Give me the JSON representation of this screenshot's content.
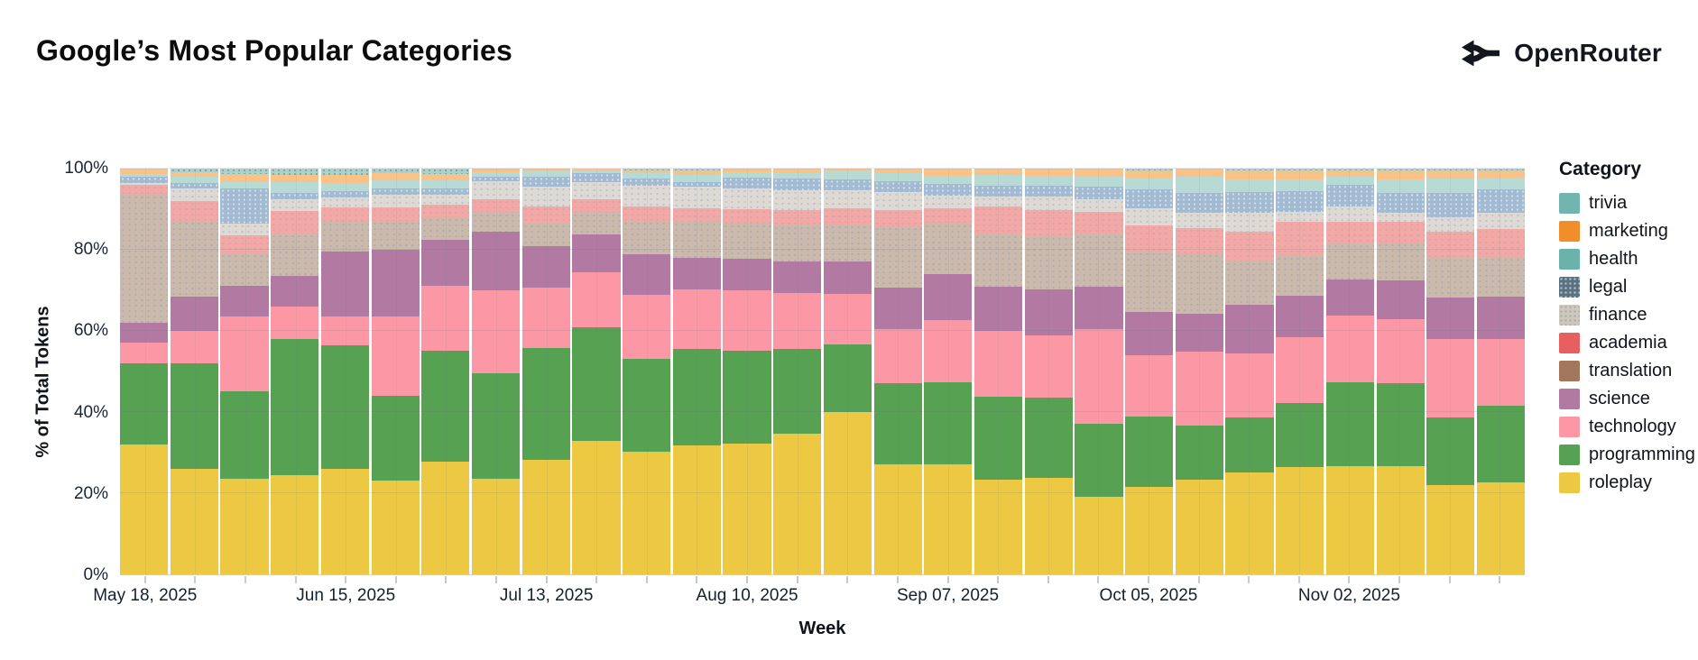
{
  "header": {
    "title": "Google’s Most Popular Categories",
    "brand": "OpenRouter"
  },
  "chart_data": {
    "type": "bar",
    "stacked": true,
    "title": "Google’s Most Popular Categories",
    "xlabel": "Week",
    "ylabel": "% of Total Tokens",
    "ylim": [
      0,
      100
    ],
    "grid": true,
    "legend_position": "right",
    "y_ticks": [
      "0%",
      "20%",
      "40%",
      "60%",
      "80%",
      "100%"
    ],
    "x": [
      "May 18, 2025",
      "May 25, 2025",
      "Jun 01, 2025",
      "Jun 08, 2025",
      "Jun 15, 2025",
      "Jun 22, 2025",
      "Jun 29, 2025",
      "Jul 06, 2025",
      "Jul 13, 2025",
      "Jul 20, 2025",
      "Jul 27, 2025",
      "Aug 03, 2025",
      "Aug 10, 2025",
      "Aug 17, 2025",
      "Aug 24, 2025",
      "Aug 31, 2025",
      "Sep 07, 2025",
      "Sep 14, 2025",
      "Sep 21, 2025",
      "Sep 28, 2025",
      "Oct 05, 2025",
      "Oct 12, 2025",
      "Oct 19, 2025",
      "Oct 26, 2025",
      "Nov 02, 2025",
      "Nov 09, 2025",
      "Nov 16, 2025",
      "Nov 23, 2025"
    ],
    "x_tick_labels": [
      {
        "index": 0,
        "label": "May 18, 2025"
      },
      {
        "index": 4,
        "label": "Jun 15, 2025"
      },
      {
        "index": 8,
        "label": "Jul 13, 2025"
      },
      {
        "index": 12,
        "label": "Aug 10, 2025"
      },
      {
        "index": 16,
        "label": "Sep 07, 2025"
      },
      {
        "index": 20,
        "label": "Oct 05, 2025"
      },
      {
        "index": 24,
        "label": "Nov 02, 2025"
      }
    ],
    "series": [
      {
        "name": "roleplay",
        "color": "#ecc843",
        "texture": null,
        "values": [
          32,
          26,
          23.5,
          24.5,
          26,
          23,
          27.8,
          23.5,
          28.3,
          32.8,
          30.2,
          31.7,
          32.1,
          34.7,
          40,
          27.2,
          27.2,
          23.4,
          23.8,
          19.2,
          21.5,
          23.4,
          25.1,
          26.4,
          26.6,
          26.6,
          22,
          22.6
        ]
      },
      {
        "name": "programming",
        "color": "#56a152",
        "texture": null,
        "values": [
          20,
          26,
          21.5,
          33.5,
          30.5,
          21,
          27.2,
          26,
          27.4,
          28,
          22.8,
          23.9,
          23.1,
          20.8,
          16.6,
          20,
          20.1,
          20.4,
          19.8,
          17.8,
          17.4,
          13.2,
          13.5,
          15.9,
          20.8,
          20.4,
          16.6,
          18.9
        ]
      },
      {
        "name": "technology",
        "color": "#fc98a6",
        "texture": null,
        "values": [
          5,
          8,
          18.5,
          8,
          7,
          19.5,
          16,
          20.5,
          14.9,
          13.7,
          15.9,
          14.6,
          14.8,
          13.9,
          12.4,
          13.2,
          15.3,
          16.2,
          15.3,
          23.5,
          15.1,
          18.3,
          15.9,
          16.2,
          16.4,
          15.8,
          19.4,
          16.6
        ]
      },
      {
        "name": "science",
        "color": "#b27aa2",
        "texture": null,
        "values": [
          5,
          8.5,
          7.5,
          7.5,
          16,
          16.5,
          11.5,
          14.5,
          10.2,
          9.3,
          10,
          7.7,
          7.7,
          7.7,
          8,
          10.3,
          11.5,
          10.9,
          11.4,
          10.4,
          10.7,
          9.4,
          11.9,
          10.2,
          8.8,
          9.7,
          10.3,
          10.4
        ]
      },
      {
        "name": "translation",
        "color": "#cbb9ab",
        "texture": "dots-blue",
        "values": [
          31.5,
          18.5,
          8,
          10.5,
          7.5,
          7,
          5.5,
          4.5,
          5.6,
          5.2,
          8.1,
          8.9,
          8.7,
          8.9,
          9.2,
          15.1,
          12.3,
          12.9,
          13.1,
          12.9,
          14.9,
          14.9,
          10.6,
          9.8,
          8.9,
          9.2,
          9.8,
          9.8
        ]
      },
      {
        "name": "academia",
        "color": "#f1a9a8",
        "texture": "dots-pink",
        "values": [
          2.5,
          5,
          4.5,
          5.5,
          3.5,
          3.5,
          3,
          3.4,
          4.3,
          3.5,
          3.6,
          3.4,
          3.6,
          3.7,
          4,
          3.9,
          3.8,
          6.8,
          6.3,
          5.6,
          6.4,
          6.2,
          7.4,
          8.3,
          5.4,
          5.1,
          6.4,
          6.8
        ]
      },
      {
        "name": "finance",
        "color": "#dfd9d4",
        "texture": "dots-blue",
        "values": [
          0.5,
          3,
          3,
          3,
          2.5,
          3,
          2.5,
          4.5,
          4.8,
          4.1,
          5.1,
          5.3,
          5.1,
          5,
          4.5,
          4.6,
          3.2,
          2.6,
          3.3,
          3.1,
          4.3,
          3.7,
          4.6,
          2.6,
          3.7,
          2.4,
          3.4,
          4.1
        ]
      },
      {
        "name": "legal",
        "color": "#a3bad3",
        "texture": "dots-light",
        "values": [
          1.5,
          1.5,
          8.5,
          1.5,
          1.5,
          1.5,
          1.5,
          1.2,
          2.6,
          2.3,
          1.8,
          1.1,
          2.6,
          2.8,
          2.7,
          2.5,
          2.8,
          2.6,
          2.7,
          3,
          4.6,
          4.9,
          5.2,
          5.1,
          5.4,
          4.8,
          6.1,
          5.7
        ]
      },
      {
        "name": "health",
        "color": "#b7dad5",
        "texture": null,
        "values": [
          0.7,
          1.5,
          1.8,
          2.7,
          2,
          2,
          2,
          1,
          1.2,
          0.7,
          1.3,
          1.8,
          1.3,
          1.4,
          1.9,
          2.1,
          2.1,
          2.7,
          2.6,
          2.6,
          2.8,
          4.1,
          3.2,
          2.8,
          2.1,
          3.4,
          3.5,
          2.8
        ]
      },
      {
        "name": "marketing",
        "color": "#f9c288",
        "texture": null,
        "values": [
          1,
          1.2,
          1.9,
          1.8,
          2,
          1.8,
          1.7,
          0.6,
          0.5,
          0.3,
          0.8,
          1.1,
          0.7,
          0.8,
          0.5,
          0.8,
          1.4,
          1.2,
          1.4,
          1.6,
          1.9,
          1.6,
          2.2,
          2.3,
          1.5,
          2.2,
          2.1,
          1.8
        ]
      },
      {
        "name": "trivia",
        "color": "#abd1cc",
        "texture": "dots-teal",
        "values": [
          0.3,
          0.8,
          1.3,
          1.5,
          1.5,
          1.2,
          1.3,
          0.3,
          0.2,
          0.1,
          0.4,
          0.5,
          0.3,
          0.3,
          0.2,
          0.3,
          0.3,
          0.3,
          0.3,
          0.3,
          0.4,
          0.3,
          0.4,
          0.4,
          0.4,
          0.4,
          0.4,
          0.5
        ]
      }
    ]
  },
  "legend": {
    "title": "Category",
    "items": [
      {
        "name": "trivia",
        "swatch": "#72b5ae",
        "texture": null
      },
      {
        "name": "marketing",
        "swatch": "#f28d2b",
        "texture": null
      },
      {
        "name": "health",
        "swatch": "#6bb2aa",
        "texture": null
      },
      {
        "name": "legal",
        "swatch": "#5d6f80",
        "texture": "dots-light"
      },
      {
        "name": "finance",
        "swatch": "#d0c7b9",
        "texture": "dots-blue"
      },
      {
        "name": "academia",
        "swatch": "#e75f5e",
        "texture": null
      },
      {
        "name": "translation",
        "swatch": "#a2775c",
        "texture": null
      },
      {
        "name": "science",
        "swatch": "#b07aa2",
        "texture": null
      },
      {
        "name": "technology",
        "swatch": "#fc98a6",
        "texture": null
      },
      {
        "name": "programming",
        "swatch": "#56a152",
        "texture": null
      },
      {
        "name": "roleplay",
        "swatch": "#ecc843",
        "texture": null
      }
    ]
  }
}
